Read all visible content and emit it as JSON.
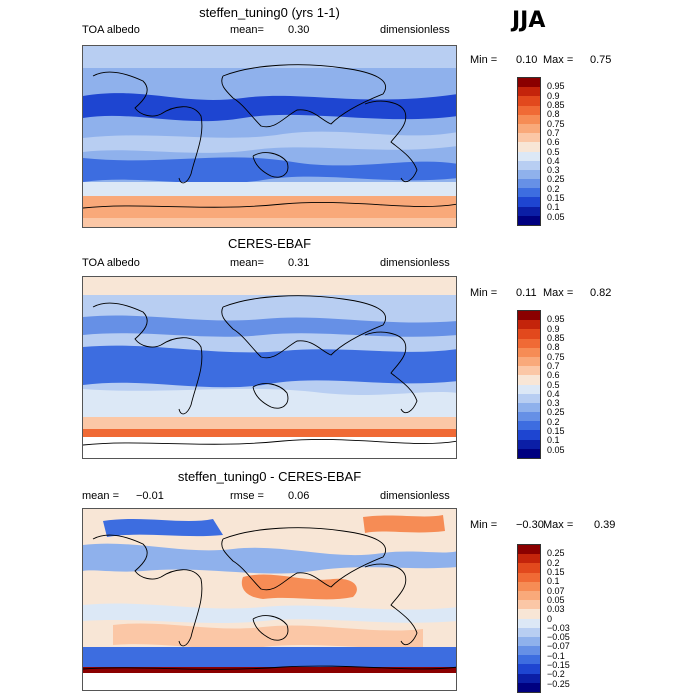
{
  "season": "JJA",
  "panels": [
    {
      "title": "steffen_tuning0 (yrs 1-1)",
      "left_label": "TOA albedo",
      "mean_label": "mean=",
      "mean_value": "0.30",
      "units": "dimensionless",
      "min_label": "Min =",
      "min_value": "0.10",
      "max_label": "Max =",
      "max_value": "0.75",
      "colorbar": {
        "labels": [
          "0.95",
          "0.9",
          "0.85",
          "0.8",
          "0.75",
          "0.7",
          "0.6",
          "0.5",
          "0.4",
          "0.3",
          "0.25",
          "0.2",
          "0.15",
          "0.1",
          "0.05"
        ],
        "colors": [
          "#8b0000",
          "#c4240b",
          "#e2491d",
          "#f06a35",
          "#f68c55",
          "#f9a97a",
          "#fbc7a6",
          "#f8e6d6",
          "#dce8f6",
          "#b8cef2",
          "#8fb1ec",
          "#6690e6",
          "#3d6de0",
          "#1e45d1",
          "#0b1ea6",
          "#000080"
        ]
      },
      "map_palette": {
        "base": "#8fb1ec",
        "low": "#3d6de0",
        "lower": "#1e45d1",
        "mid": "#b8cef2",
        "high": "#dce8f6",
        "polar": "#f9a97a",
        "warm": "#fbc7a6"
      }
    },
    {
      "title": "CERES-EBAF",
      "left_label": "TOA albedo",
      "mean_label": "mean=",
      "mean_value": "0.31",
      "units": "dimensionless",
      "min_label": "Min =",
      "min_value": "0.11",
      "max_label": "Max =",
      "max_value": "0.82",
      "colorbar": {
        "labels": [
          "0.95",
          "0.9",
          "0.85",
          "0.8",
          "0.75",
          "0.7",
          "0.6",
          "0.5",
          "0.4",
          "0.3",
          "0.25",
          "0.2",
          "0.15",
          "0.1",
          "0.05"
        ],
        "colors": [
          "#8b0000",
          "#c4240b",
          "#e2491d",
          "#f06a35",
          "#f68c55",
          "#f9a97a",
          "#fbc7a6",
          "#f8e6d6",
          "#dce8f6",
          "#b8cef2",
          "#8fb1ec",
          "#6690e6",
          "#3d6de0",
          "#1e45d1",
          "#0b1ea6",
          "#000080"
        ]
      },
      "map_palette": {
        "base": "#b8cef2",
        "low": "#6690e6",
        "lower": "#3d6de0",
        "mid": "#dce8f6",
        "high": "#f8e6d6",
        "polar": "#f06a35",
        "warm": "#fbc7a6"
      }
    },
    {
      "title": "steffen_tuning0 - CERES-EBAF",
      "left_label": "mean =",
      "mean_label": "",
      "mean_value": "−0.01",
      "rmse_label": "rmse =",
      "rmse_value": "0.06",
      "units": "dimensionless",
      "min_label": "Min =",
      "min_value": "−0.30",
      "max_label": "Max =",
      "max_value": "0.39",
      "colorbar": {
        "labels": [
          "0.25",
          "0.2",
          "0.15",
          "0.1",
          "0.07",
          "0.05",
          "0.03",
          "0",
          "−0.03",
          "−0.05",
          "−0.07",
          "−0.1",
          "−0.15",
          "−0.2",
          "−0.25"
        ],
        "colors": [
          "#8b0000",
          "#c4240b",
          "#e2491d",
          "#f06a35",
          "#f68c55",
          "#f9a97a",
          "#fbc7a6",
          "#f8e6d6",
          "#dce8f6",
          "#b8cef2",
          "#8fb1ec",
          "#6690e6",
          "#3d6de0",
          "#1e45d1",
          "#0b1ea6",
          "#000080"
        ]
      },
      "map_palette": {
        "base": "#f8e6d6",
        "low": "#8fb1ec",
        "lower": "#3d6de0",
        "mid": "#dce8f6",
        "high": "#f68c55",
        "polar": "#8b0000",
        "warm": "#fbc7a6"
      }
    }
  ]
}
